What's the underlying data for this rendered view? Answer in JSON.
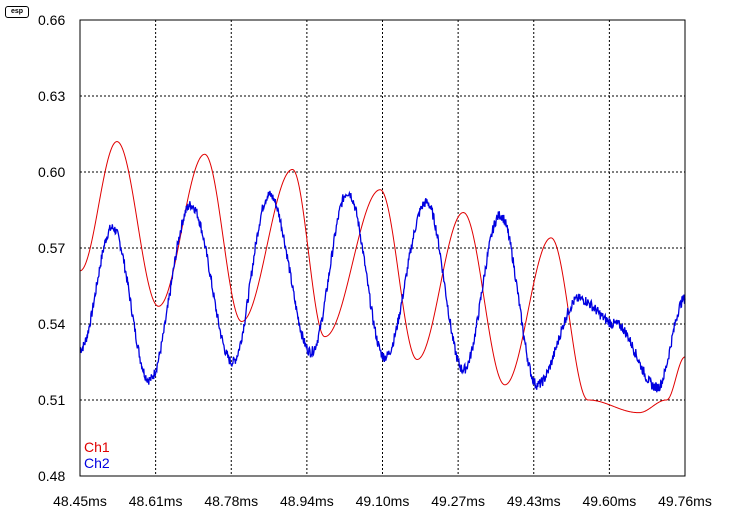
{
  "logo_text": "esp",
  "chart_data": {
    "type": "line",
    "title": "",
    "xlabel": "",
    "ylabel": "",
    "xlim": [
      48.45,
      49.76
    ],
    "ylim": [
      0.48,
      0.66
    ],
    "x_tick_labels": [
      "48.45ms",
      "48.61ms",
      "48.78ms",
      "48.94ms",
      "49.10ms",
      "49.27ms",
      "49.43ms",
      "49.60ms",
      "49.76ms"
    ],
    "y_tick_labels": [
      "0.66",
      "0.63",
      "0.60",
      "0.57",
      "0.54",
      "0.51",
      "0.48"
    ],
    "y_ticks": [
      0.66,
      0.63,
      0.6,
      0.57,
      0.54,
      0.51,
      0.48
    ],
    "grid": true,
    "legend_position": "bottom-left",
    "series": [
      {
        "name": "Ch1",
        "color": "#e00000",
        "x": [
          48.45,
          48.53,
          48.62,
          48.72,
          48.8,
          48.91,
          48.98,
          49.1,
          49.18,
          49.28,
          49.37,
          49.47,
          49.55,
          49.66,
          49.72,
          49.76
        ],
        "y": [
          0.561,
          0.612,
          0.547,
          0.607,
          0.541,
          0.601,
          0.535,
          0.593,
          0.526,
          0.584,
          0.516,
          0.574,
          0.51,
          0.505,
          0.51,
          0.527
        ]
      },
      {
        "name": "Ch2",
        "color": "#0000e0",
        "x": [
          48.45,
          48.52,
          48.6,
          48.69,
          48.78,
          48.86,
          48.95,
          49.03,
          49.11,
          49.2,
          49.28,
          49.36,
          49.44,
          49.53,
          49.61,
          49.7,
          49.76
        ],
        "y": [
          0.53,
          0.578,
          0.518,
          0.587,
          0.525,
          0.591,
          0.529,
          0.592,
          0.527,
          0.588,
          0.522,
          0.583,
          0.516,
          0.55,
          0.54,
          0.515,
          0.55
        ]
      }
    ]
  }
}
